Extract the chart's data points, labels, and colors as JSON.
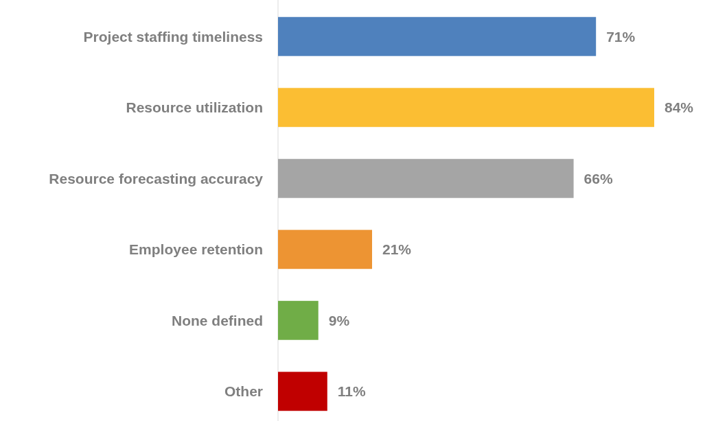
{
  "chart_data": {
    "type": "bar",
    "orientation": "horizontal",
    "categories": [
      "Project staffing timeliness",
      "Resource utilization",
      "Resource forecasting accuracy",
      "Employee retention",
      "None defined",
      "Other"
    ],
    "values": [
      71,
      84,
      66,
      21,
      9,
      11
    ],
    "value_labels": [
      "71%",
      "84%",
      "66%",
      "21%",
      "9%",
      "11%"
    ],
    "colors": [
      "#4f81bd",
      "#fbbe33",
      "#a5a5a5",
      "#ed9433",
      "#70ad47",
      "#c00000"
    ]
  }
}
